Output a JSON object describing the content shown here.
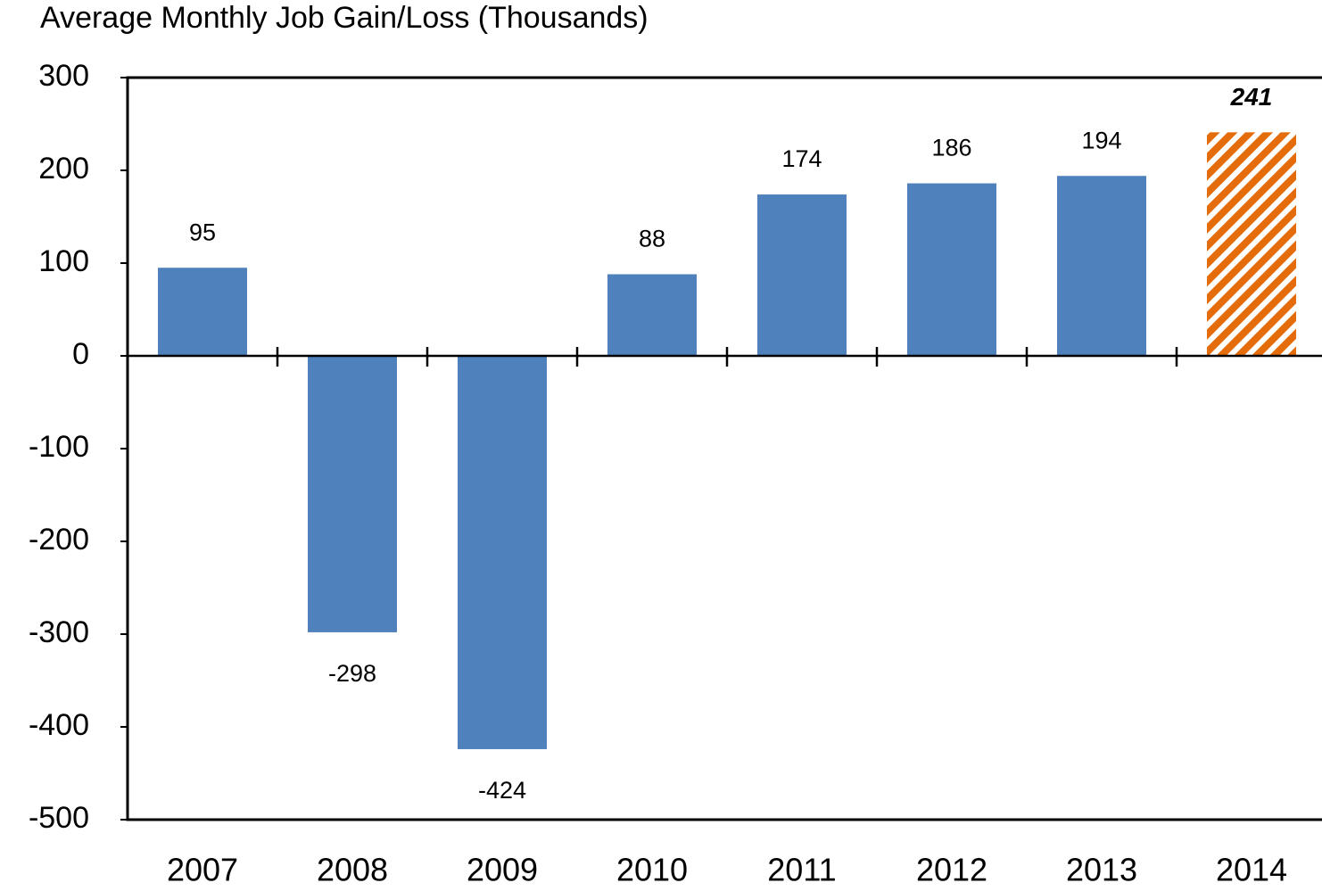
{
  "chart_data": {
    "type": "bar",
    "title": "Average Monthly Job Gain/Loss (Thousands)",
    "categories": [
      "2007",
      "2008",
      "2009",
      "2010",
      "2011",
      "2012",
      "2013",
      "2014"
    ],
    "values": [
      95,
      -298,
      -424,
      88,
      174,
      186,
      194,
      241
    ],
    "colors": [
      "#4f81bd",
      "#4f81bd",
      "#4f81bd",
      "#4f81bd",
      "#4f81bd",
      "#4f81bd",
      "#4f81bd",
      "#e46c0a"
    ],
    "hatched": [
      false,
      false,
      false,
      false,
      false,
      false,
      false,
      true
    ],
    "ylim": [
      -500,
      300
    ],
    "yticks": [
      -500,
      -400,
      -300,
      -200,
      -100,
      0,
      100,
      200,
      300
    ],
    "grid": false
  }
}
